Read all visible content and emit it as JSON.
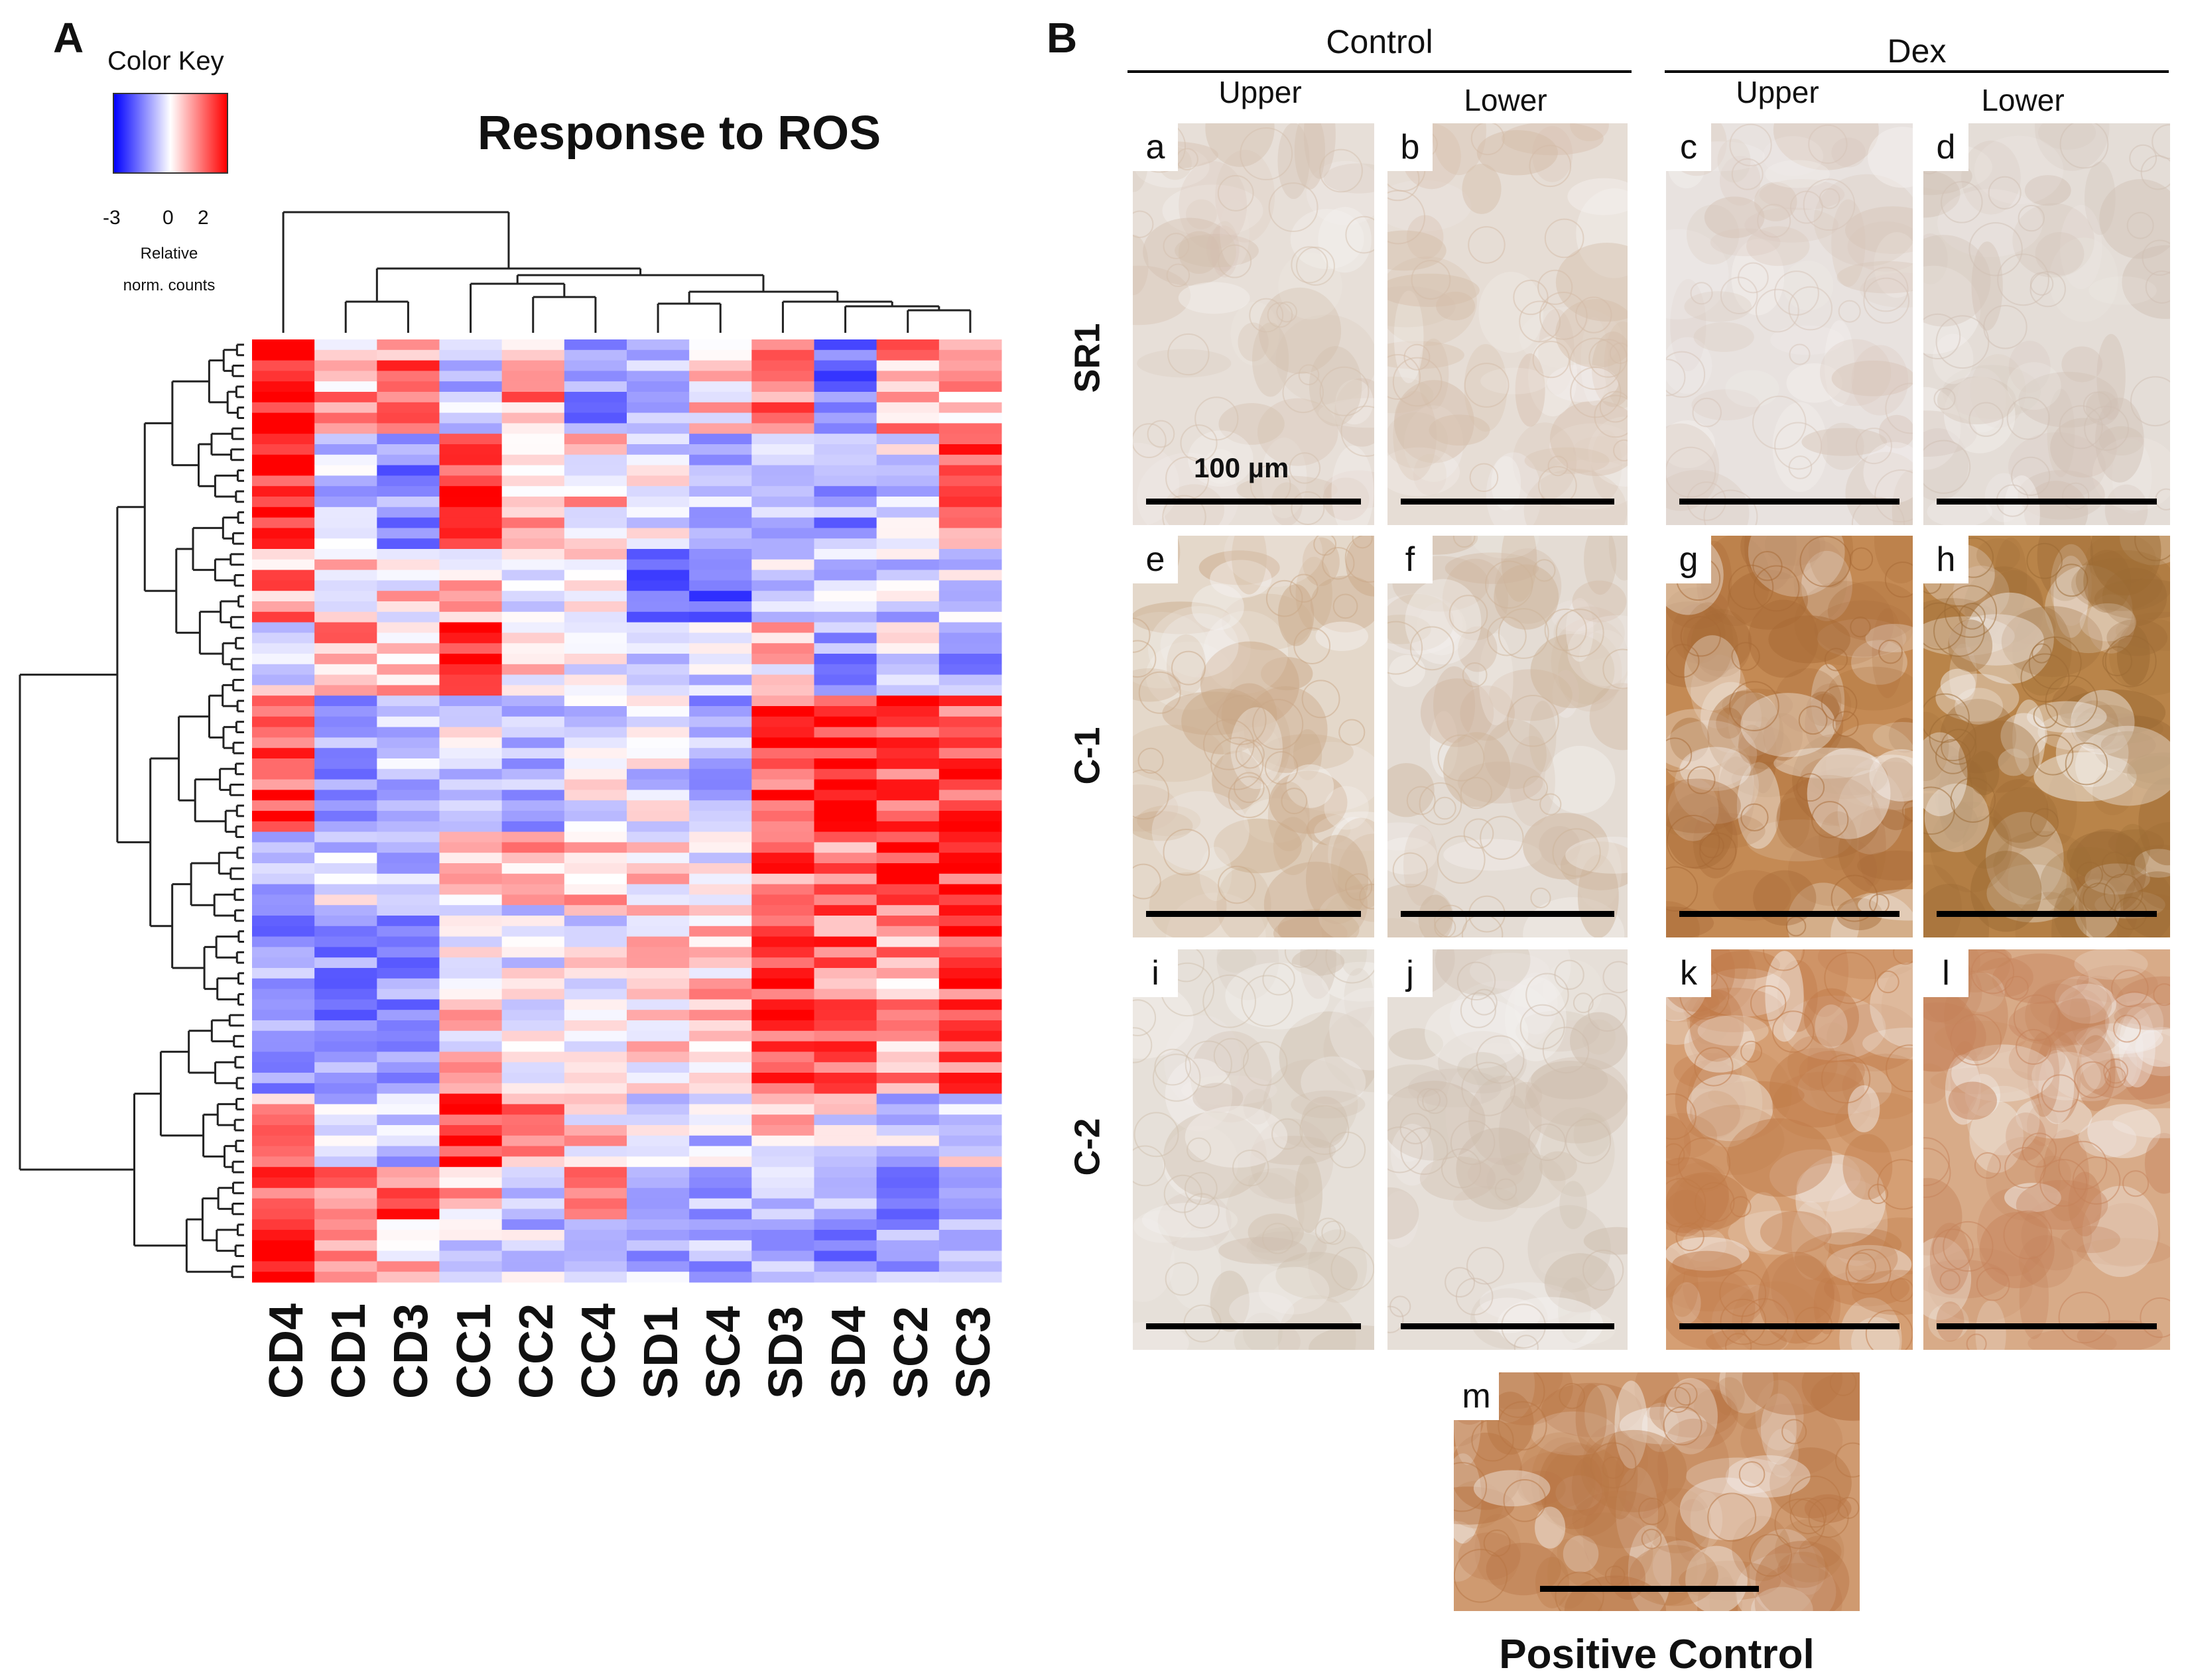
{
  "panel_a": {
    "letter": "A",
    "title": "Response to ROS",
    "color_key": {
      "title": "Color Key",
      "ticks": [
        "-3",
        "0",
        "2"
      ],
      "sublabel_line1": "Relative",
      "sublabel_line2": "norm. counts",
      "low_color": "#0000ff",
      "mid_color": "#ffffff",
      "high_color": "#ff0000"
    },
    "column_labels": [
      "CD4",
      "CD1",
      "CD3",
      "CC1",
      "CC2",
      "CC4",
      "SD1",
      "SC4",
      "SD3",
      "SD4",
      "SC2",
      "SC3"
    ],
    "chart_data": {
      "type": "heatmap",
      "title": "Response to ROS",
      "columns": [
        "CD4",
        "CD1",
        "CD3",
        "CC1",
        "CC2",
        "CC4",
        "SD1",
        "SC4",
        "SD3",
        "SD4",
        "SC2",
        "SC3"
      ],
      "value_range": [
        -3,
        2
      ],
      "row_count": 90,
      "column_blocks": [
        {
          "column": "CD4",
          "segments": [
            [
              2,
              0.1
            ],
            [
              1.8,
              0.12
            ],
            [
              0.8,
              0.08
            ],
            [
              -0.4,
              0.08
            ],
            [
              1.4,
              0.14
            ],
            [
              -0.8,
              0.08
            ],
            [
              -1.2,
              0.2
            ],
            [
              0.6,
              0.08
            ],
            [
              1.6,
              0.06
            ],
            [
              2,
              0.06
            ]
          ]
        },
        {
          "column": "CD1",
          "segments": [
            [
              0.6,
              0.1
            ],
            [
              -0.6,
              0.12
            ],
            [
              0.3,
              0.08
            ],
            [
              0.8,
              0.08
            ],
            [
              -1.0,
              0.14
            ],
            [
              -0.4,
              0.08
            ],
            [
              -1.3,
              0.2
            ],
            [
              -0.6,
              0.08
            ],
            [
              0.7,
              0.06
            ],
            [
              0.4,
              0.06
            ]
          ]
        },
        {
          "column": "CD3",
          "segments": [
            [
              1.0,
              0.1
            ],
            [
              -1.4,
              0.12
            ],
            [
              0.2,
              0.08
            ],
            [
              0.4,
              0.08
            ],
            [
              -0.7,
              0.14
            ],
            [
              -0.6,
              0.08
            ],
            [
              -1.2,
              0.2
            ],
            [
              -0.8,
              0.08
            ],
            [
              1.2,
              0.06
            ],
            [
              0.3,
              0.06
            ]
          ]
        },
        {
          "column": "CC1",
          "segments": [
            [
              -0.8,
              0.1
            ],
            [
              1.6,
              0.12
            ],
            [
              0.3,
              0.08
            ],
            [
              1.9,
              0.08
            ],
            [
              -0.4,
              0.14
            ],
            [
              0.6,
              0.08
            ],
            [
              0.2,
              0.2
            ],
            [
              1.8,
              0.08
            ],
            [
              0.4,
              0.06
            ],
            [
              -0.2,
              0.06
            ]
          ]
        },
        {
          "column": "CC2",
          "segments": [
            [
              0.8,
              0.1
            ],
            [
              0.6,
              0.12
            ],
            [
              -0.4,
              0.08
            ],
            [
              0.2,
              0.08
            ],
            [
              -0.8,
              0.14
            ],
            [
              0.8,
              0.08
            ],
            [
              -0.3,
              0.2
            ],
            [
              1.0,
              0.08
            ],
            [
              -0.4,
              0.06
            ],
            [
              -0.6,
              0.06
            ]
          ]
        },
        {
          "column": "CC4",
          "segments": [
            [
              -1.2,
              0.1
            ],
            [
              0.3,
              0.12
            ],
            [
              0.4,
              0.08
            ],
            [
              -0.4,
              0.08
            ],
            [
              -0.3,
              0.14
            ],
            [
              0.4,
              0.08
            ],
            [
              -0.2,
              0.2
            ],
            [
              0.2,
              0.08
            ],
            [
              1.4,
              0.06
            ],
            [
              -0.4,
              0.06
            ]
          ]
        },
        {
          "column": "SD1",
          "segments": [
            [
              -0.6,
              0.1
            ],
            [
              -0.3,
              0.12
            ],
            [
              -1.6,
              0.08
            ],
            [
              -0.8,
              0.08
            ],
            [
              -0.4,
              0.14
            ],
            [
              0.2,
              0.08
            ],
            [
              0.3,
              0.2
            ],
            [
              -0.4,
              0.08
            ],
            [
              -0.6,
              0.06
            ],
            [
              -0.8,
              0.06
            ]
          ]
        },
        {
          "column": "SC4",
          "segments": [
            [
              0.2,
              0.1
            ],
            [
              -0.8,
              0.12
            ],
            [
              -1.8,
              0.08
            ],
            [
              -0.6,
              0.08
            ],
            [
              -0.9,
              0.14
            ],
            [
              -0.2,
              0.08
            ],
            [
              0.4,
              0.2
            ],
            [
              -0.6,
              0.08
            ],
            [
              -0.8,
              0.06
            ],
            [
              -1.0,
              0.06
            ]
          ]
        },
        {
          "column": "SD3",
          "segments": [
            [
              1.2,
              0.1
            ],
            [
              -0.5,
              0.12
            ],
            [
              -0.6,
              0.08
            ],
            [
              0.2,
              0.08
            ],
            [
              1.4,
              0.14
            ],
            [
              1.2,
              0.08
            ],
            [
              1.6,
              0.2
            ],
            [
              0.2,
              0.08
            ],
            [
              -0.9,
              0.06
            ],
            [
              -1.0,
              0.06
            ]
          ]
        },
        {
          "column": "SD4",
          "segments": [
            [
              -1.6,
              0.1
            ],
            [
              -1.2,
              0.12
            ],
            [
              -0.4,
              0.08
            ],
            [
              -1.2,
              0.08
            ],
            [
              1.9,
              0.14
            ],
            [
              0.8,
              0.08
            ],
            [
              1.2,
              0.2
            ],
            [
              -0.2,
              0.08
            ],
            [
              -1.0,
              0.06
            ],
            [
              -1.2,
              0.06
            ]
          ]
        },
        {
          "column": "SC2",
          "segments": [
            [
              0.8,
              0.1
            ],
            [
              -0.4,
              0.12
            ],
            [
              -0.6,
              0.08
            ],
            [
              -0.3,
              0.08
            ],
            [
              1.4,
              0.14
            ],
            [
              1.6,
              0.08
            ],
            [
              0.8,
              0.2
            ],
            [
              -0.6,
              0.08
            ],
            [
              -1.2,
              0.06
            ],
            [
              -1.1,
              0.06
            ]
          ]
        },
        {
          "column": "SC3",
          "segments": [
            [
              0.4,
              0.1
            ],
            [
              1.2,
              0.12
            ],
            [
              -0.4,
              0.08
            ],
            [
              -1.2,
              0.08
            ],
            [
              1.5,
              0.14
            ],
            [
              1.6,
              0.08
            ],
            [
              1.4,
              0.2
            ],
            [
              -0.3,
              0.08
            ],
            [
              -1.4,
              0.06
            ],
            [
              -1.2,
              0.06
            ]
          ]
        }
      ]
    }
  },
  "panel_b": {
    "letter": "B",
    "groups": [
      "Control",
      "Dex"
    ],
    "columns": [
      "Upper",
      "Lower",
      "Upper",
      "Lower"
    ],
    "rows": [
      "SR1",
      "C-1",
      "C-2"
    ],
    "scale_label": "100 µm",
    "images": [
      {
        "letter": "a",
        "tone": "#e7dfd8",
        "stain": "#d3bfae",
        "level": 0.15
      },
      {
        "letter": "b",
        "tone": "#e6ddd5",
        "stain": "#d4bca8",
        "level": 0.2
      },
      {
        "letter": "c",
        "tone": "#e8e2df",
        "stain": "#d6c4b7",
        "level": 0.15
      },
      {
        "letter": "d",
        "tone": "#e4ddd7",
        "stain": "#d0c0b4",
        "level": 0.15
      },
      {
        "letter": "e",
        "tone": "#e4d8ca",
        "stain": "#c9a887",
        "level": 0.35
      },
      {
        "letter": "f",
        "tone": "#e4dcd4",
        "stain": "#cdb39a",
        "level": 0.25
      },
      {
        "letter": "g",
        "tone": "#c48a54",
        "stain": "#a86a36",
        "level": 0.85
      },
      {
        "letter": "h",
        "tone": "#b98449",
        "stain": "#9c6a34",
        "level": 0.95
      },
      {
        "letter": "i",
        "tone": "#e6e0d9",
        "stain": "#cfbfae",
        "level": 0.15
      },
      {
        "letter": "j",
        "tone": "#e6dfd8",
        "stain": "#cdbcab",
        "level": 0.15
      },
      {
        "letter": "k",
        "tone": "#d59f74",
        "stain": "#c07a48",
        "level": 0.75
      },
      {
        "letter": "l",
        "tone": "#d8ab88",
        "stain": "#c5825a",
        "level": 0.7
      }
    ],
    "positive_control": {
      "letter": "m",
      "label": "Positive Control",
      "tone": "#cf9a70",
      "stain": "#b87544",
      "level": 0.8
    }
  }
}
